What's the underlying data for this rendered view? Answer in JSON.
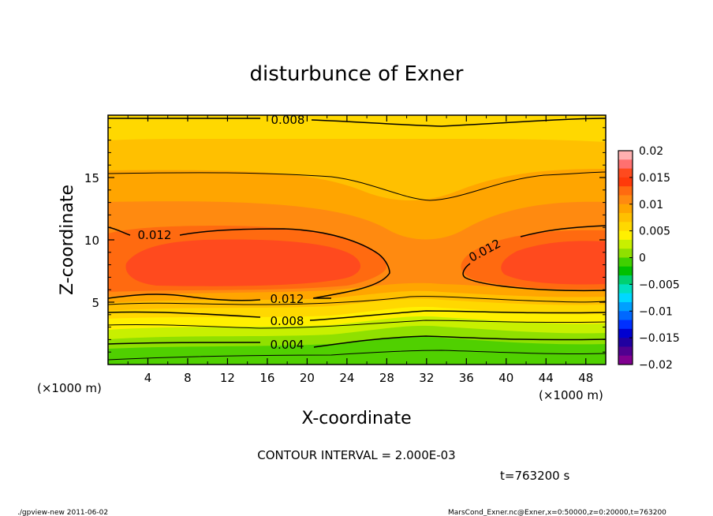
{
  "chart_data": {
    "type": "heatmap",
    "subtype": "filled-contour",
    "title": "disturbunce of Exner",
    "xlabel": "X-coordinate",
    "ylabel": "Z-coordinate",
    "x_unit_left": "(×1000 m)",
    "x_unit_right": "(×1000 m)",
    "xlim": [
      0,
      50
    ],
    "ylim": [
      0,
      20
    ],
    "xticks": [
      4,
      8,
      12,
      16,
      20,
      24,
      28,
      32,
      36,
      40,
      44,
      48
    ],
    "xtick_labels": [
      "4",
      "8",
      "12",
      "16",
      "20",
      "24",
      "28",
      "32",
      "36",
      "40",
      "44",
      "48"
    ],
    "yticks": [
      5,
      10,
      15
    ],
    "ytick_labels": [
      "5",
      "10",
      "15"
    ],
    "colorbar": {
      "range": [
        -0.02,
        0.02
      ],
      "tick_labels": [
        "0.02",
        "0.015",
        "0.01",
        "0.005",
        "0",
        "−0.005",
        "−0.01",
        "−0.015",
        "−0.02"
      ],
      "colors": [
        "#ffb0b0",
        "#ff7070",
        "#ff4a1e",
        "#ff3a0a",
        "#ff6a10",
        "#ff8a10",
        "#ffa500",
        "#ffc000",
        "#ffd800",
        "#fff000",
        "#c8f000",
        "#90e000",
        "#40d000",
        "#00c000",
        "#00d070",
        "#00e0c0",
        "#00d8ff",
        "#00a0ff",
        "#0068ff",
        "#0030ff",
        "#0000d0",
        "#2000a0",
        "#500090",
        "#800090"
      ]
    },
    "contour_interval_text": "CONTOUR INTERVAL = 2.000E-03",
    "contour_labels": [
      "0.008",
      "0.012",
      "0.012",
      "0.012",
      "0.008",
      "0.004"
    ],
    "grid": false
  },
  "annotations": {
    "time": "t=763200 s",
    "footer_left": "./gpview-new  2011-06-02",
    "footer_right": "MarsCond_Exner.nc@Exner,x=0:50000,z=0:20000,t=763200"
  }
}
